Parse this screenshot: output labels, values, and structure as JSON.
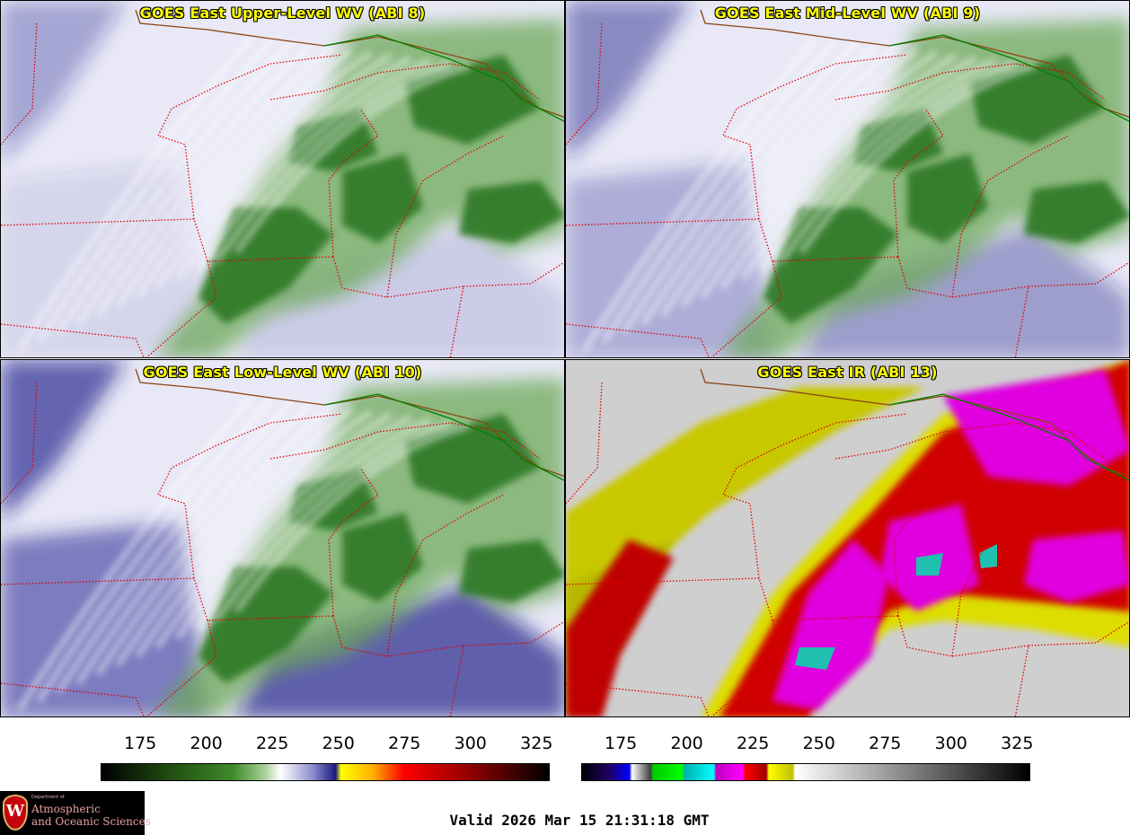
{
  "panels": [
    {
      "title": "GOES East Upper-Level WV (ABI 8)",
      "palette": "wv",
      "low_level_blue": 0.15
    },
    {
      "title": "GOES East Mid-Level WV (ABI 9)",
      "palette": "wv",
      "low_level_blue": 0.45
    },
    {
      "title": "GOES East Low-Level WV (ABI 10)",
      "palette": "wv",
      "low_level_blue": 0.8
    },
    {
      "title": "GOES East IR (ABI 13)",
      "palette": "ir"
    }
  ],
  "colorbars": [
    {
      "name": "water-vapor",
      "ticks": [
        "175",
        "200",
        "225",
        "250",
        "275",
        "300",
        "325"
      ],
      "range": [
        160,
        330
      ],
      "stops": [
        {
          "v": 160,
          "c": "#000000"
        },
        {
          "v": 185,
          "c": "#1f4a10"
        },
        {
          "v": 210,
          "c": "#3f8a2a"
        },
        {
          "v": 222,
          "c": "#a8cf98"
        },
        {
          "v": 228,
          "c": "#ffffff"
        },
        {
          "v": 240,
          "c": "#9090d0"
        },
        {
          "v": 249,
          "c": "#1a1a80"
        },
        {
          "v": 251,
          "c": "#ffff00"
        },
        {
          "v": 263,
          "c": "#ffb000"
        },
        {
          "v": 275,
          "c": "#ff0000"
        },
        {
          "v": 300,
          "c": "#900000"
        },
        {
          "v": 330,
          "c": "#000000"
        }
      ]
    },
    {
      "name": "infrared",
      "ticks": [
        "175",
        "200",
        "225",
        "250",
        "275",
        "300",
        "325"
      ],
      "range": [
        160,
        330
      ],
      "stops": [
        {
          "v": 160,
          "c": "#000000"
        },
        {
          "v": 170,
          "c": "#200060"
        },
        {
          "v": 178,
          "c": "#0000ff"
        },
        {
          "v": 179,
          "c": "#ffffff"
        },
        {
          "v": 186,
          "c": "#404040"
        },
        {
          "v": 187,
          "c": "#00cc00"
        },
        {
          "v": 198,
          "c": "#00ff00"
        },
        {
          "v": 199,
          "c": "#00b0b0"
        },
        {
          "v": 210,
          "c": "#00ffff"
        },
        {
          "v": 211,
          "c": "#c000c0"
        },
        {
          "v": 221,
          "c": "#ff00ff"
        },
        {
          "v": 222,
          "c": "#ff0000"
        },
        {
          "v": 230,
          "c": "#a00000"
        },
        {
          "v": 231,
          "c": "#ffff00"
        },
        {
          "v": 240,
          "c": "#c0c000"
        },
        {
          "v": 241,
          "c": "#ffffff"
        },
        {
          "v": 330,
          "c": "#000000"
        }
      ]
    }
  ],
  "logo": {
    "small": "Department of",
    "line1": "Atmospheric",
    "line2": "and Oceanic Sciences",
    "crest": "W"
  },
  "valid_time": "Valid 2026 Mar 15 21:31:18 GMT"
}
